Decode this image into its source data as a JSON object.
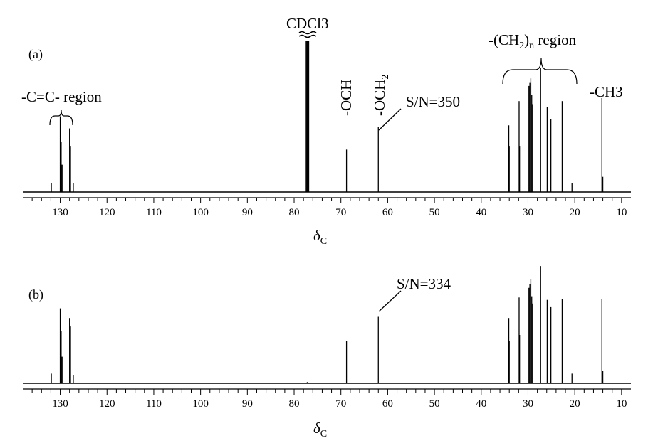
{
  "chart_data": {
    "type": "line",
    "xlim": [
      138,
      8
    ],
    "x_axis_reversed": true,
    "x_ticks": [
      130,
      120,
      110,
      100,
      90,
      80,
      70,
      60,
      50,
      40,
      30,
      20,
      10
    ],
    "xlabel_main": "δ",
    "xlabel_sub": "C",
    "panels": [
      {
        "label": "(a)",
        "peaks": [
          {
            "x": 131.9,
            "h": 0.06
          },
          {
            "x": 130.0,
            "h": 0.5
          },
          {
            "x": 129.8,
            "h": 0.33
          },
          {
            "x": 129.6,
            "h": 0.18
          },
          {
            "x": 128.0,
            "h": 0.42
          },
          {
            "x": 127.8,
            "h": 0.3
          },
          {
            "x": 127.2,
            "h": 0.06
          },
          {
            "x": 77.4,
            "h": 1.0
          },
          {
            "x": 77.2,
            "h": 1.0
          },
          {
            "x": 76.9,
            "h": 1.0
          },
          {
            "x": 68.8,
            "h": 0.28
          },
          {
            "x": 62.0,
            "h": 0.43
          },
          {
            "x": 34.1,
            "h": 0.44
          },
          {
            "x": 34.0,
            "h": 0.3
          },
          {
            "x": 31.9,
            "h": 0.6
          },
          {
            "x": 31.8,
            "h": 0.3
          },
          {
            "x": 29.8,
            "h": 0.7
          },
          {
            "x": 29.6,
            "h": 0.72
          },
          {
            "x": 29.4,
            "h": 0.75
          },
          {
            "x": 29.2,
            "h": 0.64
          },
          {
            "x": 29.0,
            "h": 0.58
          },
          {
            "x": 27.3,
            "h": 0.82
          },
          {
            "x": 25.9,
            "h": 0.56
          },
          {
            "x": 25.1,
            "h": 0.48
          },
          {
            "x": 22.7,
            "h": 0.6
          },
          {
            "x": 20.6,
            "h": 0.06
          },
          {
            "x": 14.2,
            "h": 0.62
          },
          {
            "x": 14.0,
            "h": 0.1
          }
        ],
        "annotations": {
          "cdcl3": "CDCl3",
          "och": "-OCH",
          "och2_main": "-OCH",
          "och2_sub": "2",
          "sn": "S/N=350",
          "cc_region": "-C=C- region",
          "ch2_pre": "-(CH",
          "ch2_sub1": "2",
          "ch2_mid": ")",
          "ch2_sub2": "n",
          "ch2_post": " region",
          "ch3": "-CH3"
        }
      },
      {
        "label": "(b)",
        "peaks": [
          {
            "x": 131.9,
            "h": 0.08
          },
          {
            "x": 130.0,
            "h": 0.62
          },
          {
            "x": 129.8,
            "h": 0.43
          },
          {
            "x": 129.6,
            "h": 0.22
          },
          {
            "x": 128.0,
            "h": 0.54
          },
          {
            "x": 127.8,
            "h": 0.47
          },
          {
            "x": 127.2,
            "h": 0.07
          },
          {
            "x": 77.2,
            "h": 0.01
          },
          {
            "x": 68.8,
            "h": 0.35
          },
          {
            "x": 62.0,
            "h": 0.55
          },
          {
            "x": 34.1,
            "h": 0.54
          },
          {
            "x": 34.0,
            "h": 0.35
          },
          {
            "x": 31.9,
            "h": 0.71
          },
          {
            "x": 31.8,
            "h": 0.4
          },
          {
            "x": 29.8,
            "h": 0.79
          },
          {
            "x": 29.6,
            "h": 0.82
          },
          {
            "x": 29.4,
            "h": 0.86
          },
          {
            "x": 29.2,
            "h": 0.72
          },
          {
            "x": 29.0,
            "h": 0.66
          },
          {
            "x": 27.3,
            "h": 0.97
          },
          {
            "x": 25.9,
            "h": 0.69
          },
          {
            "x": 25.1,
            "h": 0.63
          },
          {
            "x": 22.7,
            "h": 0.7
          },
          {
            "x": 20.6,
            "h": 0.08
          },
          {
            "x": 14.2,
            "h": 0.7
          },
          {
            "x": 14.0,
            "h": 0.1
          }
        ],
        "annotations": {
          "sn": "S/N=334"
        }
      }
    ]
  }
}
